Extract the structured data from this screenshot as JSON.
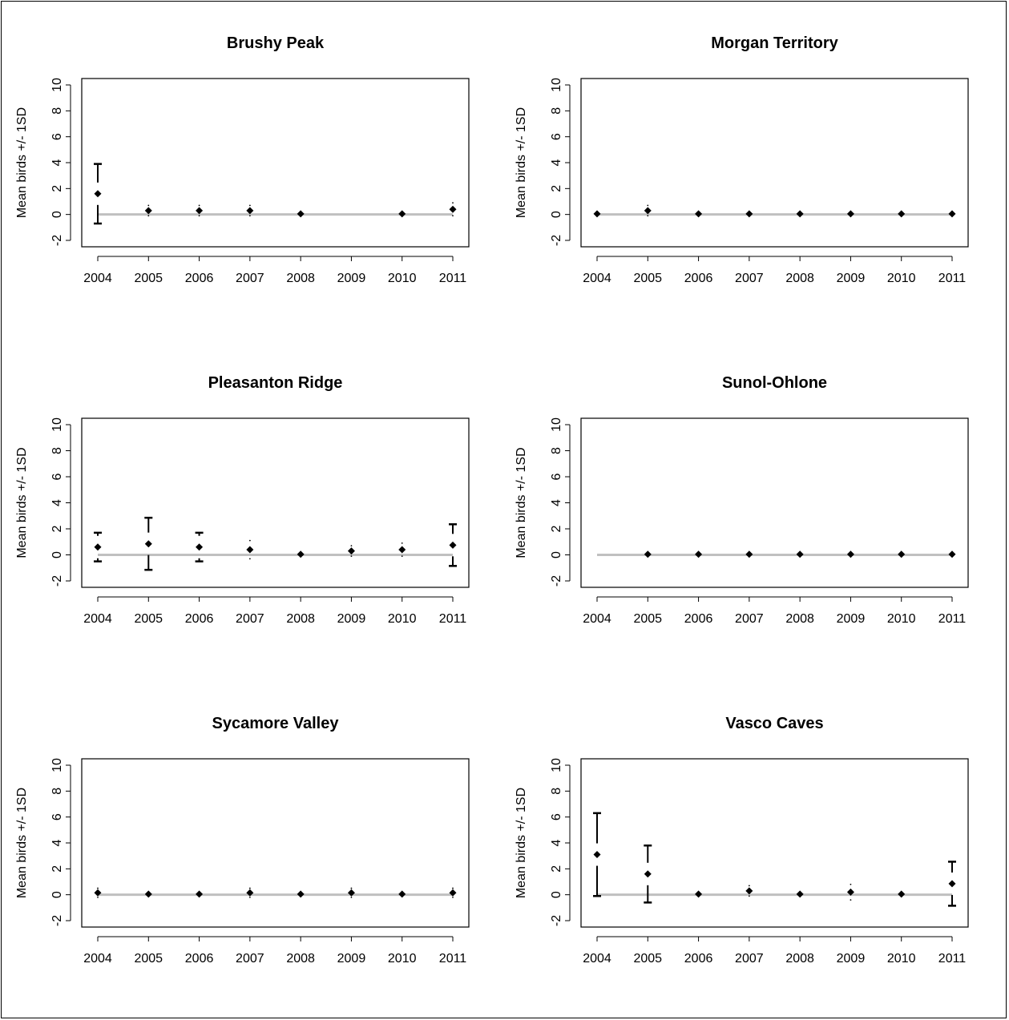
{
  "chart_data": [
    {
      "type": "scatter",
      "title": "Brushy Peak",
      "ylabel": "Mean birds +/- 1SD",
      "xlabel": "",
      "x": [
        2004,
        2005,
        2006,
        2007,
        2008,
        2010,
        2011
      ],
      "mean": [
        1.6,
        0.3,
        0.3,
        0.3,
        0.05,
        0.05,
        0.4
      ],
      "sd": [
        2.3,
        0.4,
        0.4,
        0.4,
        0.1,
        0.1,
        0.5
      ],
      "xticks": [
        "2004",
        "2005",
        "2006",
        "2007",
        "2008",
        "2009",
        "2010",
        "2011"
      ],
      "yticks": [
        "-2",
        "0",
        "2",
        "4",
        "6",
        "8",
        "10"
      ],
      "ylim": [
        -2,
        10
      ],
      "reference_line": 0,
      "colors": {
        "points": "#000000",
        "reference_line": "#c0c0c0"
      }
    },
    {
      "type": "scatter",
      "title": "Morgan Territory",
      "ylabel": "Mean birds +/- 1SD",
      "xlabel": "",
      "x": [
        2004,
        2005,
        2006,
        2007,
        2008,
        2009,
        2010,
        2011
      ],
      "mean": [
        0.05,
        0.3,
        0.05,
        0.05,
        0.05,
        0.05,
        0.05,
        0.05
      ],
      "sd": [
        0.1,
        0.4,
        0.1,
        0.1,
        0.1,
        0.1,
        0.1,
        0.1
      ],
      "xticks": [
        "2004",
        "2005",
        "2006",
        "2007",
        "2008",
        "2009",
        "2010",
        "2011"
      ],
      "yticks": [
        "-2",
        "0",
        "2",
        "4",
        "6",
        "8",
        "10"
      ],
      "ylim": [
        -2,
        10
      ],
      "reference_line": 0,
      "colors": {
        "points": "#000000",
        "reference_line": "#c0c0c0"
      }
    },
    {
      "type": "scatter",
      "title": "Pleasanton Ridge",
      "ylabel": "Mean birds +/- 1SD",
      "xlabel": "",
      "x": [
        2004,
        2005,
        2006,
        2007,
        2008,
        2009,
        2010,
        2011
      ],
      "mean": [
        0.6,
        0.85,
        0.6,
        0.4,
        0.05,
        0.3,
        0.4,
        0.75
      ],
      "sd": [
        1.1,
        2.0,
        1.1,
        0.7,
        0.1,
        0.4,
        0.5,
        1.6
      ],
      "xticks": [
        "2004",
        "2005",
        "2006",
        "2007",
        "2008",
        "2009",
        "2010",
        "2011"
      ],
      "yticks": [
        "-2",
        "0",
        "2",
        "4",
        "6",
        "8",
        "10"
      ],
      "ylim": [
        -2,
        10
      ],
      "reference_line": 0,
      "colors": {
        "points": "#000000",
        "reference_line": "#c0c0c0"
      }
    },
    {
      "type": "scatter",
      "title": "Sunol-Ohlone",
      "ylabel": "Mean birds +/- 1SD",
      "xlabel": "",
      "x": [
        2005,
        2006,
        2007,
        2008,
        2009,
        2010,
        2011
      ],
      "mean": [
        0.05,
        0.05,
        0.05,
        0.05,
        0.05,
        0.05,
        0.05
      ],
      "sd": [
        0.1,
        0.1,
        0.1,
        0.1,
        0.1,
        0.1,
        0.1
      ],
      "xticks": [
        "2004",
        "2005",
        "2006",
        "2007",
        "2008",
        "2009",
        "2010",
        "2011"
      ],
      "yticks": [
        "-2",
        "0",
        "2",
        "4",
        "6",
        "8",
        "10"
      ],
      "ylim": [
        -2,
        10
      ],
      "reference_line": 0,
      "colors": {
        "points": "#000000",
        "reference_line": "#c0c0c0"
      }
    },
    {
      "type": "scatter",
      "title": "Sycamore Valley",
      "ylabel": "Mean birds +/- 1SD",
      "xlabel": "",
      "x": [
        2004,
        2005,
        2006,
        2007,
        2008,
        2009,
        2010,
        2011
      ],
      "mean": [
        0.15,
        0.05,
        0.05,
        0.15,
        0.05,
        0.15,
        0.05,
        0.15
      ],
      "sd": [
        0.35,
        0.1,
        0.1,
        0.35,
        0.1,
        0.35,
        0.1,
        0.35
      ],
      "xticks": [
        "2004",
        "2005",
        "2006",
        "2007",
        "2008",
        "2009",
        "2010",
        "2011"
      ],
      "yticks": [
        "-2",
        "0",
        "2",
        "4",
        "6",
        "8",
        "10"
      ],
      "ylim": [
        -2,
        10
      ],
      "reference_line": 0,
      "colors": {
        "points": "#000000",
        "reference_line": "#c0c0c0"
      }
    },
    {
      "type": "scatter",
      "title": "Vasco Caves",
      "ylabel": "Mean birds +/- 1SD",
      "xlabel": "",
      "x": [
        2004,
        2005,
        2006,
        2007,
        2008,
        2009,
        2010,
        2011
      ],
      "mean": [
        3.1,
        1.6,
        0.05,
        0.3,
        0.05,
        0.2,
        0.05,
        0.85
      ],
      "sd": [
        3.2,
        2.2,
        0.1,
        0.4,
        0.1,
        0.6,
        0.1,
        1.7
      ],
      "xticks": [
        "2004",
        "2005",
        "2006",
        "2007",
        "2008",
        "2009",
        "2010",
        "2011"
      ],
      "yticks": [
        "-2",
        "0",
        "2",
        "4",
        "6",
        "8",
        "10"
      ],
      "ylim": [
        -2,
        10
      ],
      "reference_line": 0,
      "colors": {
        "points": "#000000",
        "reference_line": "#c0c0c0"
      }
    }
  ]
}
